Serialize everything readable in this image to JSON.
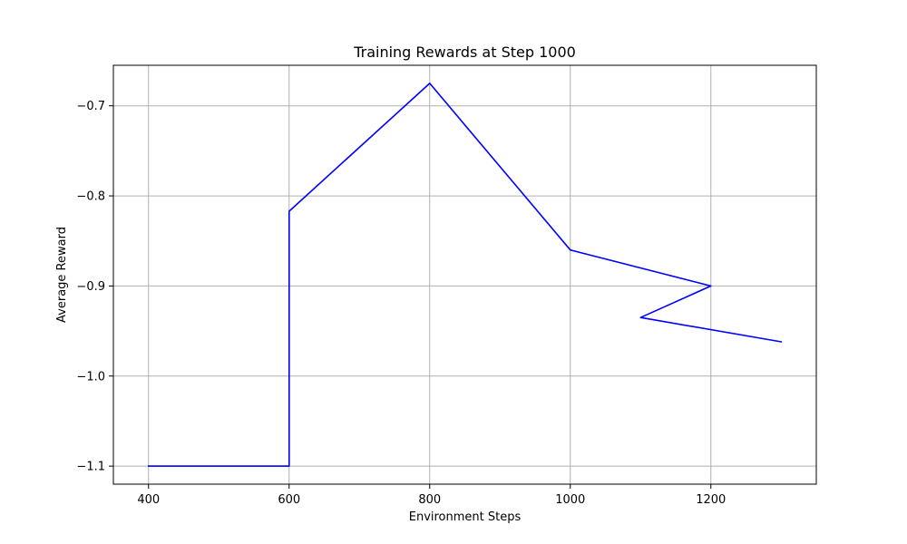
{
  "chart_data": {
    "type": "line",
    "title": "Training Rewards at Step 1000",
    "xlabel": "Environment Steps",
    "ylabel": "Average Reward",
    "xlim": [
      350,
      1350
    ],
    "ylim": [
      -1.12,
      -0.655
    ],
    "xticks": [
      400,
      600,
      800,
      1000,
      1200
    ],
    "yticks": [
      -1.1,
      -1.0,
      -0.9,
      -0.8,
      -0.7
    ],
    "ytick_labels": [
      "−1.1",
      "−1.0",
      "−0.9",
      "−0.8",
      "−0.7"
    ],
    "grid": true,
    "series": [
      {
        "color": "#0000ff",
        "x": [
          400,
          600,
          600,
          800,
          1000,
          1200,
          1100,
          1300
        ],
        "y": [
          -1.1,
          -1.1,
          -0.817,
          -0.675,
          -0.86,
          -0.9,
          -0.935,
          -0.962
        ]
      }
    ]
  }
}
